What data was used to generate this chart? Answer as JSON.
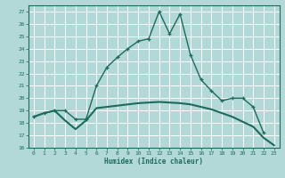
{
  "title": "",
  "xlabel": "Humidex (Indice chaleur)",
  "bg_color": "#b2d8d8",
  "grid_color": "#ffffff",
  "line_color": "#1a6b5a",
  "xlim": [
    -0.5,
    23.5
  ],
  "ylim": [
    16,
    27.5
  ],
  "xticks": [
    0,
    1,
    2,
    3,
    4,
    5,
    6,
    7,
    8,
    9,
    10,
    11,
    12,
    13,
    14,
    15,
    16,
    17,
    18,
    19,
    20,
    21,
    22,
    23
  ],
  "yticks": [
    16,
    17,
    18,
    19,
    20,
    21,
    22,
    23,
    24,
    25,
    26,
    27
  ],
  "line1_x": [
    0,
    1,
    2,
    3,
    4,
    5,
    6,
    7,
    8,
    9,
    10,
    11,
    12,
    13,
    14,
    15,
    16,
    17,
    18,
    19,
    20,
    21,
    22
  ],
  "line1_y": [
    18.5,
    18.8,
    19.0,
    19.0,
    18.3,
    18.3,
    21.0,
    22.5,
    23.3,
    24.0,
    24.6,
    24.8,
    27.0,
    25.2,
    26.8,
    23.5,
    21.5,
    20.6,
    19.8,
    20.0,
    20.0,
    19.3,
    17.2
  ],
  "line2_x": [
    0,
    1,
    2,
    3,
    4,
    5,
    6,
    7,
    8,
    9,
    10,
    11,
    12,
    13,
    14,
    15,
    16,
    17,
    18,
    19,
    20,
    21,
    22,
    23
  ],
  "line2_y": [
    18.5,
    18.8,
    19.0,
    18.2,
    17.5,
    18.2,
    19.2,
    19.3,
    19.4,
    19.5,
    19.6,
    19.65,
    19.7,
    19.65,
    19.6,
    19.5,
    19.3,
    19.1,
    18.8,
    18.5,
    18.1,
    17.7,
    16.8,
    16.2
  ]
}
